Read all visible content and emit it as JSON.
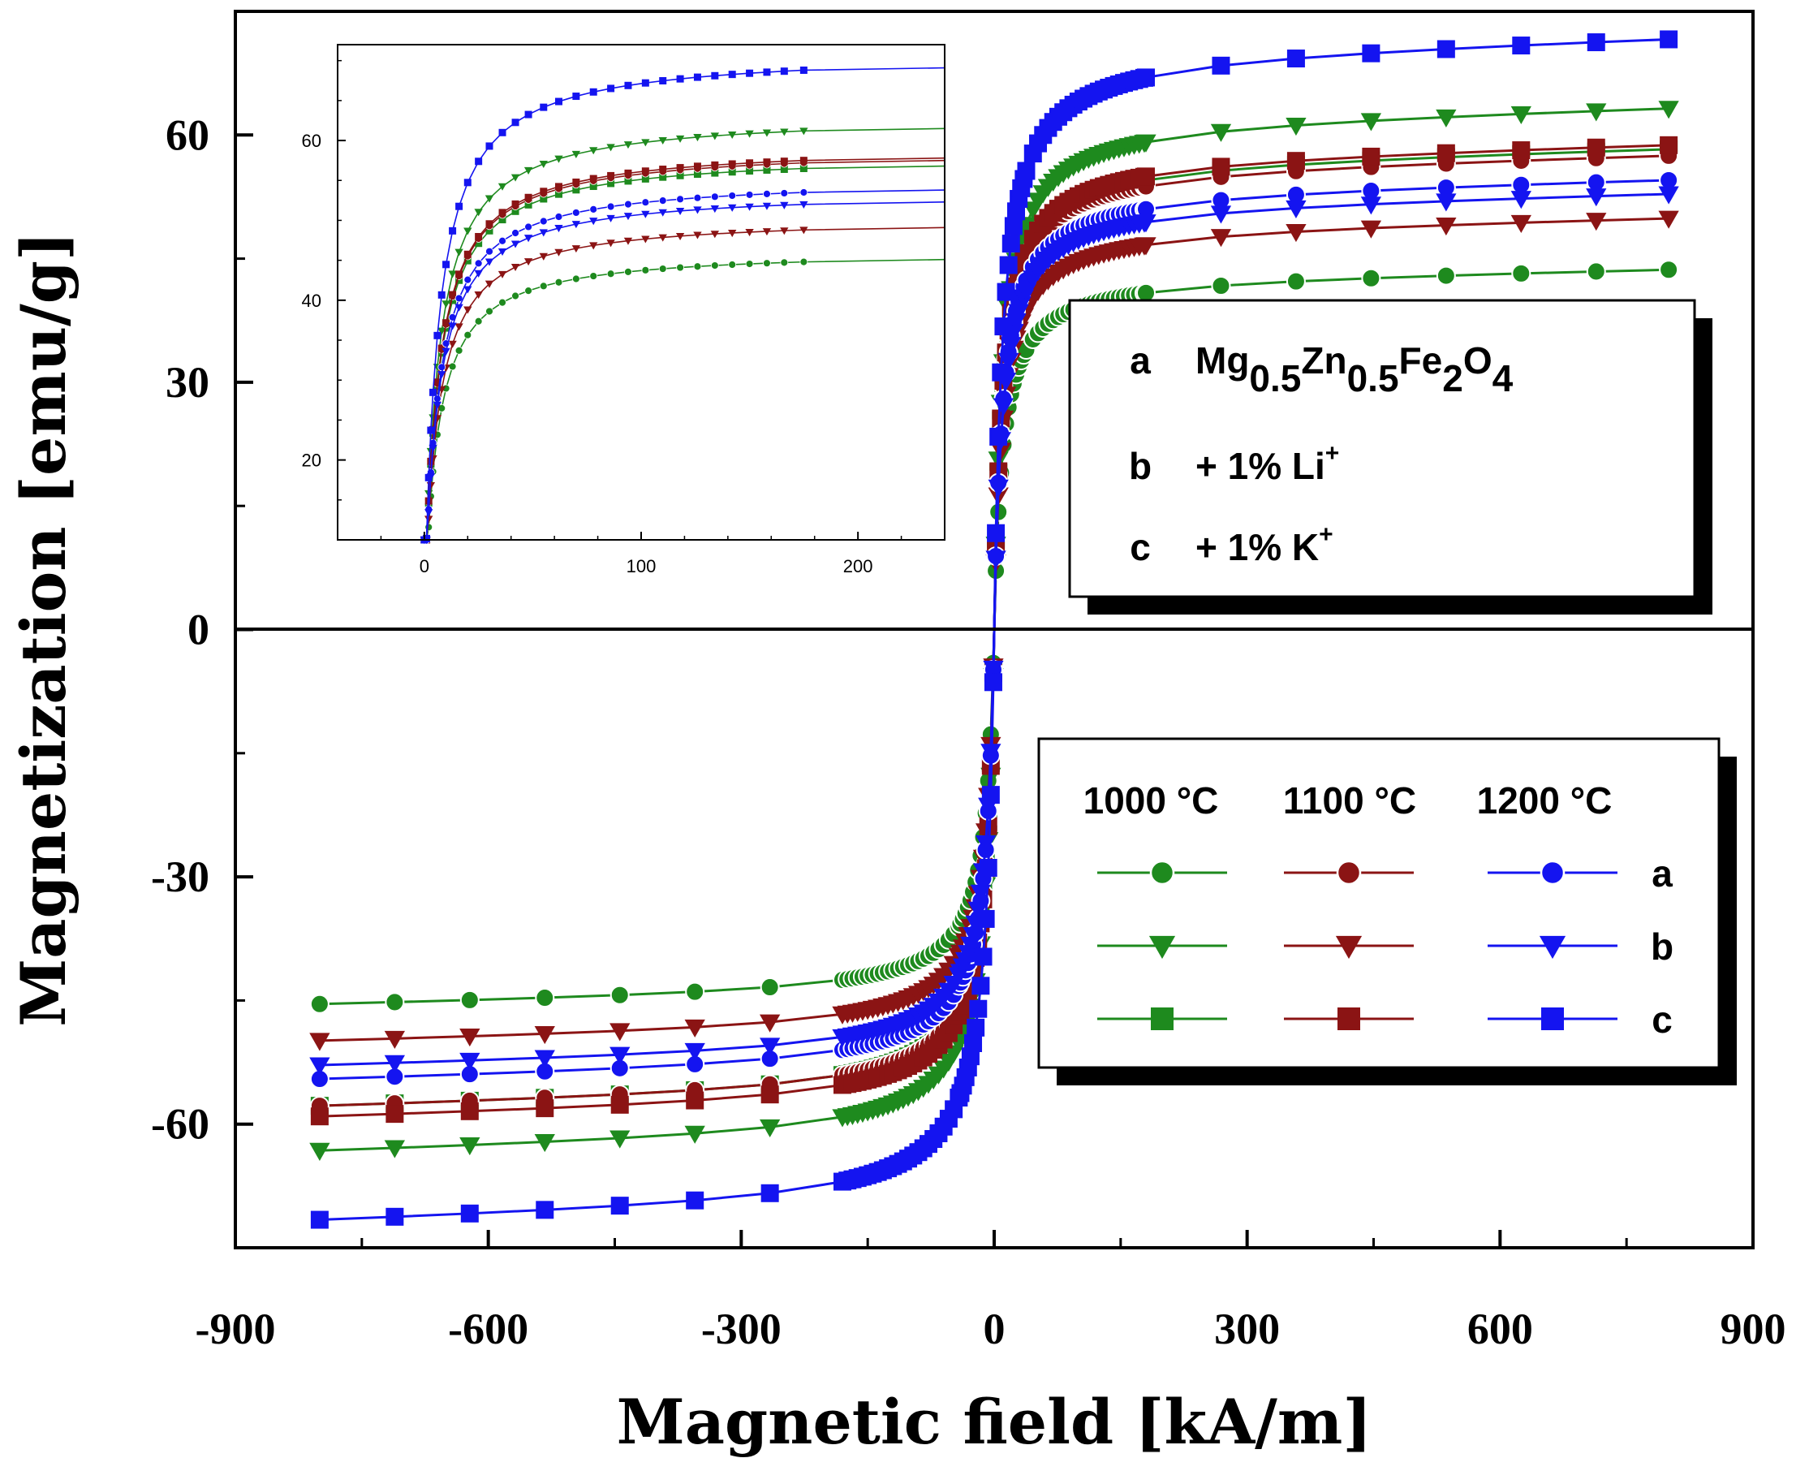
{
  "chart_data": [
    {
      "type": "line",
      "title": "",
      "xlabel": "Magnetic field [kA/m]",
      "ylabel": "Magnetization [emu/g]",
      "xlim": [
        -900,
        900
      ],
      "ylim": [
        -75,
        75
      ],
      "xticks": [
        -900,
        -600,
        -300,
        0,
        300,
        600,
        900
      ],
      "xtick_labels": [
        "-900",
        "-600",
        "-300",
        "0",
        "300",
        "600",
        "900"
      ],
      "yticks": [
        -60,
        -30,
        0,
        30,
        60
      ],
      "ytick_labels": [
        "-60",
        "-30",
        "0",
        "30",
        "60"
      ],
      "field_range": [
        -800,
        800
      ],
      "series": [
        {
          "name": "a 1000 °C",
          "composition": "a",
          "temperature": "1000 °C",
          "color": "#1e8a1e",
          "marker": "circle",
          "ms": 44.2,
          "ms_neg": -46.0,
          "h0": 10
        },
        {
          "name": "b 1000 °C",
          "composition": "b",
          "temperature": "1000 °C",
          "color": "#1e8a1e",
          "marker": "triangle",
          "ms": 64.0,
          "ms_neg": -64.0,
          "h0": 10
        },
        {
          "name": "c 1000 °C",
          "composition": "c",
          "temperature": "1000 °C",
          "color": "#1e8a1e",
          "marker": "square",
          "ms": 59.0,
          "ms_neg": -58.5,
          "h0": 10
        },
        {
          "name": "a 1100 °C",
          "composition": "a",
          "temperature": "1100 °C",
          "color": "#8b1414",
          "marker": "circle",
          "ms": 58.2,
          "ms_neg": -58.5,
          "h0": 10
        },
        {
          "name": "b 1100 °C",
          "composition": "b",
          "temperature": "1100 °C",
          "color": "#8b1414",
          "marker": "triangle",
          "ms": 50.5,
          "ms_neg": -50.5,
          "h0": 10
        },
        {
          "name": "c 1100 °C",
          "composition": "c",
          "temperature": "1100 °C",
          "color": "#8b1414",
          "marker": "square",
          "ms": 59.5,
          "ms_neg": -59.8,
          "h0": 10
        },
        {
          "name": "a 1200 °C",
          "composition": "a",
          "temperature": "1200 °C",
          "color": "#1414f0",
          "marker": "circle",
          "ms": 55.2,
          "ms_neg": -55.2,
          "h0": 10
        },
        {
          "name": "b 1200 °C",
          "composition": "b",
          "temperature": "1200 °C",
          "color": "#1414f0",
          "marker": "triangle",
          "ms": 53.5,
          "ms_neg": -53.5,
          "h0": 10
        },
        {
          "name": "c 1200 °C",
          "composition": "c",
          "temperature": "1200 °C",
          "color": "#1414f0",
          "marker": "square",
          "ms": 72.5,
          "ms_neg": -72.5,
          "h0": 10
        }
      ]
    },
    {
      "type": "line",
      "title": "inset",
      "xlim": [
        -40,
        240
      ],
      "ylim": [
        10,
        72
      ],
      "xticks": [
        0,
        100,
        200
      ],
      "xtick_labels": [
        "0",
        "100",
        "200"
      ],
      "yticks": [
        20,
        40,
        60
      ],
      "ytick_labels": [
        "20",
        "40",
        "60"
      ],
      "field_range": [
        0,
        175
      ],
      "series_values_at_175": [
        44.8,
        61.2,
        56.5,
        57.2,
        48.8,
        57.5,
        53.5,
        52.0,
        68.8
      ]
    }
  ],
  "legend": {
    "compositions": [
      {
        "key": "a",
        "base": "Mg",
        "sub1": "0.5",
        "el2": "Zn",
        "sub2": "0.5",
        "el3": "Fe",
        "sub3": "2",
        "el4": "O",
        "sub4": "4"
      },
      {
        "key": "b",
        "label": "+ 1% Li",
        "sup": "+"
      },
      {
        "key": "c",
        "label": "+ 1% K",
        "sup": "+"
      }
    ],
    "temperatures": [
      "1000 °C",
      "1100 °C",
      "1200 °C"
    ],
    "rows": [
      "a",
      "b",
      "c"
    ]
  }
}
